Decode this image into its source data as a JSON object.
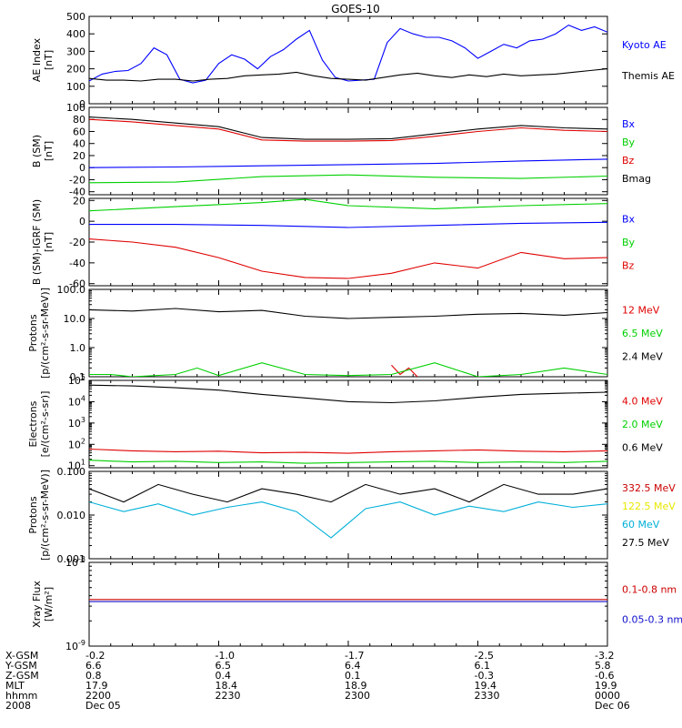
{
  "title": "GOES-10",
  "colors": {
    "black": "#000000",
    "blue": "#0000ff",
    "green": "#00d000",
    "red": "#e00000",
    "yellow": "#e8e800",
    "cyan": "#00b0d8",
    "crimson": "#cc0000",
    "navy": "#1010cc"
  },
  "footer": {
    "rows": [
      {
        "label": "X-GSM",
        "values": [
          "-0.2",
          "-1.0",
          "-1.7",
          "-2.5",
          "-3.2"
        ]
      },
      {
        "label": "Y-GSM",
        "values": [
          "6.6",
          "6.5",
          "6.4",
          "6.1",
          "5.8"
        ]
      },
      {
        "label": "Z-GSM",
        "values": [
          "0.8",
          "0.4",
          "0.1",
          "-0.3",
          "-0.6"
        ]
      },
      {
        "label": "MLT",
        "values": [
          "17.9",
          "18.4",
          "18.9",
          "19.4",
          "19.9"
        ]
      },
      {
        "label": "hhmm",
        "values": [
          "2200",
          "2230",
          "2300",
          "2330",
          "0000"
        ]
      },
      {
        "label": "2008",
        "values": [
          "Dec 05",
          "",
          "",
          "",
          "Dec 06"
        ]
      }
    ]
  },
  "chart_data": [
    {
      "type": "line",
      "ylabel": "AE Index [nT]",
      "yscale": "linear",
      "ylim": [
        0,
        500
      ],
      "yticks": [
        0,
        100,
        200,
        300,
        400,
        500
      ],
      "series": [
        {
          "name": "Kyoto AE",
          "color": "#0000ff",
          "x": [
            0,
            3,
            6,
            9,
            12,
            15,
            18,
            21,
            24,
            27,
            30,
            33,
            36,
            39,
            42,
            45,
            48,
            51,
            54,
            57,
            60,
            63,
            66,
            69,
            72,
            75,
            78,
            81,
            84,
            87,
            90,
            93,
            96,
            99,
            102,
            105,
            108,
            111,
            114,
            117,
            120
          ],
          "values": [
            130,
            170,
            185,
            190,
            230,
            320,
            280,
            140,
            120,
            135,
            230,
            280,
            255,
            200,
            270,
            310,
            370,
            420,
            250,
            150,
            130,
            135,
            140,
            350,
            430,
            400,
            380,
            380,
            360,
            320,
            260,
            300,
            340,
            320,
            360,
            370,
            400,
            450,
            420,
            440,
            410
          ]
        },
        {
          "name": "Themis AE",
          "color": "#000000",
          "x": [
            0,
            4,
            8,
            12,
            16,
            20,
            24,
            28,
            32,
            36,
            40,
            44,
            48,
            52,
            56,
            60,
            64,
            68,
            72,
            76,
            80,
            84,
            88,
            92,
            96,
            100,
            104,
            108,
            112,
            116,
            120
          ],
          "values": [
            145,
            135,
            135,
            130,
            140,
            140,
            130,
            140,
            145,
            160,
            165,
            170,
            180,
            160,
            145,
            140,
            135,
            150,
            165,
            175,
            160,
            150,
            165,
            155,
            170,
            160,
            165,
            170,
            180,
            190,
            200
          ]
        }
      ]
    },
    {
      "type": "line",
      "ylabel": "B (SM) [nT]",
      "yscale": "linear",
      "ylim": [
        -45,
        100
      ],
      "yticks": [
        -40,
        -20,
        0,
        20,
        40,
        60,
        80,
        100
      ],
      "series": [
        {
          "name": "Bx",
          "color": "#0000ff",
          "x": [
            0,
            20,
            40,
            60,
            80,
            100,
            120
          ],
          "values": [
            0,
            1,
            3,
            5,
            7,
            11,
            14
          ]
        },
        {
          "name": "By",
          "color": "#00d000",
          "x": [
            0,
            20,
            40,
            60,
            80,
            100,
            120
          ],
          "values": [
            -25,
            -24,
            -15,
            -12,
            -16,
            -18,
            -14
          ]
        },
        {
          "name": "Bz",
          "color": "#e00000",
          "x": [
            0,
            10,
            20,
            30,
            40,
            50,
            60,
            70,
            80,
            90,
            100,
            110,
            120
          ],
          "values": [
            80,
            76,
            70,
            64,
            46,
            44,
            44,
            45,
            52,
            60,
            66,
            62,
            60
          ]
        },
        {
          "name": "Bmag",
          "color": "#000000",
          "x": [
            0,
            10,
            20,
            30,
            40,
            50,
            60,
            70,
            80,
            90,
            100,
            110,
            120
          ],
          "values": [
            84,
            80,
            74,
            68,
            50,
            47,
            47,
            48,
            56,
            64,
            70,
            66,
            64
          ]
        }
      ]
    },
    {
      "type": "line",
      "ylabel": "B (SM)-IGRF (SM) [nT]",
      "yscale": "linear",
      "ylim": [
        -62,
        22
      ],
      "yticks": [
        -60,
        -40,
        -20,
        0,
        20
      ],
      "series": [
        {
          "name": "Bx",
          "color": "#0000ff",
          "x": [
            0,
            20,
            40,
            60,
            80,
            100,
            120
          ],
          "values": [
            -3,
            -3,
            -4,
            -6,
            -4,
            -2,
            -1
          ]
        },
        {
          "name": "By",
          "color": "#00d000",
          "x": [
            0,
            20,
            40,
            50,
            60,
            80,
            100,
            120
          ],
          "values": [
            10,
            14,
            18,
            21,
            15,
            12,
            15,
            17
          ]
        },
        {
          "name": "Bz",
          "color": "#e00000",
          "x": [
            0,
            10,
            20,
            30,
            40,
            50,
            60,
            70,
            80,
            90,
            100,
            110,
            120
          ],
          "values": [
            -17,
            -20,
            -25,
            -35,
            -48,
            -54,
            -55,
            -50,
            -40,
            -45,
            -30,
            -36,
            -35
          ]
        }
      ]
    },
    {
      "type": "line",
      "ylabel": "Protons [p/(cm^2-s-sr-MeV)]",
      "yscale": "log",
      "ylim": [
        0.1,
        100
      ],
      "ytick_labels": [
        "0.1",
        "1.0",
        "10.0",
        "100.0"
      ],
      "series": [
        {
          "name": "12 MeV",
          "color": "#e00000",
          "x": [
            70,
            72,
            74,
            76
          ],
          "values": [
            0.25,
            0.12,
            0.2,
            0.1
          ]
        },
        {
          "name": "6.5 MeV",
          "color": "#00d000",
          "x": [
            0,
            5,
            10,
            20,
            25,
            30,
            40,
            50,
            60,
            70,
            80,
            90,
            100,
            110,
            120
          ],
          "values": [
            0.12,
            0.12,
            0.1,
            0.12,
            0.2,
            0.11,
            0.3,
            0.12,
            0.11,
            0.12,
            0.3,
            0.1,
            0.12,
            0.2,
            0.12
          ]
        },
        {
          "name": "2.4 MeV",
          "color": "#000000",
          "x": [
            0,
            10,
            20,
            30,
            40,
            50,
            60,
            70,
            80,
            90,
            100,
            110,
            120
          ],
          "values": [
            20,
            18,
            22,
            17,
            19,
            12,
            10,
            11,
            12,
            14,
            15,
            13,
            16
          ]
        }
      ]
    },
    {
      "type": "line",
      "ylabel": "Electrons [e/(cm^2-s-sr)]",
      "yscale": "log",
      "ylim": [
        8,
        100000
      ],
      "ytick_labels": [
        "10^1",
        "10^2",
        "10^3",
        "10^4",
        "10^5"
      ],
      "series": [
        {
          "name": "4.0 MeV",
          "color": "#e00000",
          "x": [
            0,
            10,
            20,
            30,
            40,
            50,
            60,
            70,
            80,
            90,
            100,
            110,
            120
          ],
          "values": [
            60,
            50,
            45,
            48,
            40,
            42,
            38,
            45,
            50,
            55,
            48,
            45,
            50
          ]
        },
        {
          "name": "2.0 MeV",
          "color": "#00d000",
          "x": [
            0,
            10,
            20,
            30,
            40,
            50,
            60,
            70,
            80,
            90,
            100,
            110,
            120
          ],
          "values": [
            18,
            15,
            16,
            14,
            15,
            13,
            14,
            15,
            16,
            14,
            15,
            14,
            16
          ]
        },
        {
          "name": "0.6 MeV",
          "color": "#000000",
          "x": [
            0,
            10,
            20,
            30,
            40,
            50,
            60,
            70,
            80,
            90,
            100,
            110,
            120
          ],
          "values": [
            60000,
            55000,
            45000,
            35000,
            22000,
            15000,
            10000,
            9000,
            11000,
            16000,
            22000,
            25000,
            28000
          ]
        }
      ]
    },
    {
      "type": "line",
      "ylabel": "Protons [p/(cm^2-s-sr-MeV)]",
      "yscale": "log",
      "ylim": [
        0.001,
        0.1
      ],
      "ytick_labels": [
        "0.001",
        "0.010",
        "0.100"
      ],
      "series": [
        {
          "name": "332.5 MeV",
          "color": "#cc0000",
          "x": [],
          "values": []
        },
        {
          "name": "122.5 MeV",
          "color": "#e8e800",
          "x": [],
          "values": []
        },
        {
          "name": "60 MeV",
          "color": "#00b0d8",
          "x": [
            0,
            8,
            16,
            24,
            32,
            40,
            48,
            56,
            64,
            72,
            80,
            88,
            96,
            104,
            112,
            120
          ],
          "values": [
            0.02,
            0.012,
            0.018,
            0.01,
            0.015,
            0.02,
            0.012,
            0.003,
            0.014,
            0.02,
            0.01,
            0.016,
            0.012,
            0.02,
            0.015,
            0.018
          ]
        },
        {
          "name": "27.5 MeV",
          "color": "#000000",
          "x": [
            0,
            8,
            16,
            24,
            32,
            40,
            48,
            56,
            64,
            72,
            80,
            88,
            96,
            104,
            112,
            120
          ],
          "values": [
            0.04,
            0.02,
            0.05,
            0.03,
            0.02,
            0.04,
            0.03,
            0.02,
            0.05,
            0.03,
            0.04,
            0.02,
            0.05,
            0.03,
            0.03,
            0.04
          ]
        }
      ]
    },
    {
      "type": "line",
      "ylabel": "Xray Flux [W/m^2]",
      "yscale": "log",
      "ylim": [
        1e-09,
        1e-08
      ],
      "ytick_labels": [
        "10^-9",
        "10^-8"
      ],
      "series": [
        {
          "name": "0.1-0.8 nm",
          "color": "#cc0000",
          "x": [
            0,
            120
          ],
          "values": [
            3.6e-09,
            3.6e-09
          ]
        },
        {
          "name": "0.05-0.3 nm",
          "color": "#1010cc",
          "x": [
            0,
            120
          ],
          "values": [
            3.4e-09,
            3.4e-09
          ]
        }
      ]
    }
  ]
}
